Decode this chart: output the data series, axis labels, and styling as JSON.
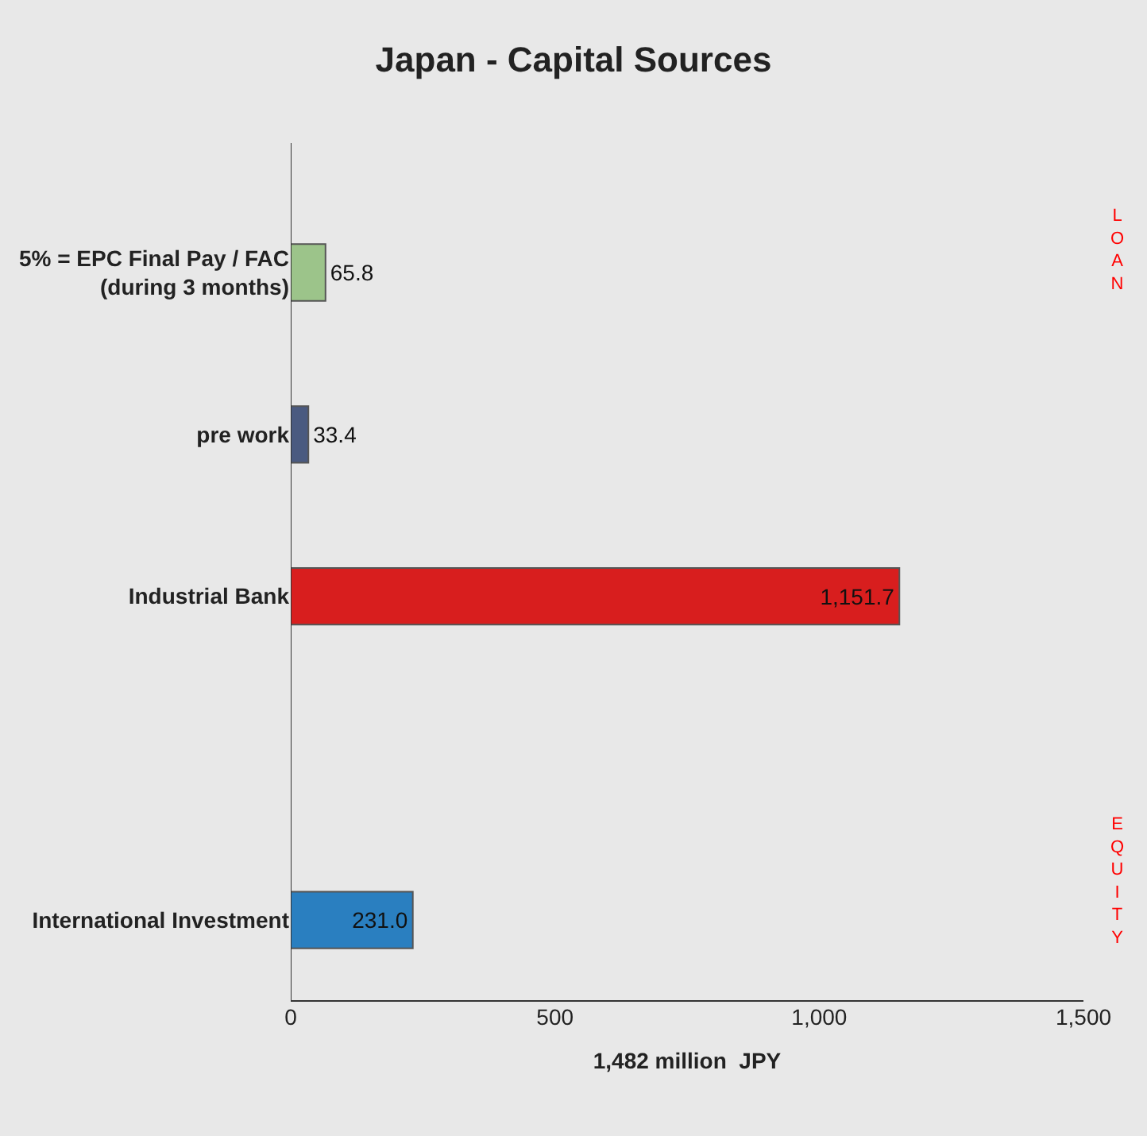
{
  "chart_data": {
    "type": "bar",
    "orientation": "horizontal",
    "title": "Japan - Capital Sources",
    "xlabel": "1,482 million  JPY",
    "categories": [
      "5% = EPC Final Pay / FAC\n(during 3 months)",
      "pre work",
      "Industrial Bank",
      null,
      "International Investment"
    ],
    "values": [
      65.8,
      33.4,
      1151.7,
      null,
      231.0
    ],
    "colors": [
      "#9cc48a",
      "#4a5a80",
      "#d81e1e",
      "#ffffff",
      "#2a7fc0"
    ],
    "value_labels": [
      "65.8",
      "33.4",
      "1,151.7",
      null,
      "231.0"
    ],
    "xlim": [
      0,
      1500
    ],
    "xticks": [
      0,
      500,
      {
        "value": 1000,
        "label": "1,000"
      },
      {
        "value": 1500,
        "label": "1,500"
      }
    ],
    "grid": false,
    "legend": false,
    "annotations": [
      "LOAN",
      "EQUITY"
    ]
  }
}
